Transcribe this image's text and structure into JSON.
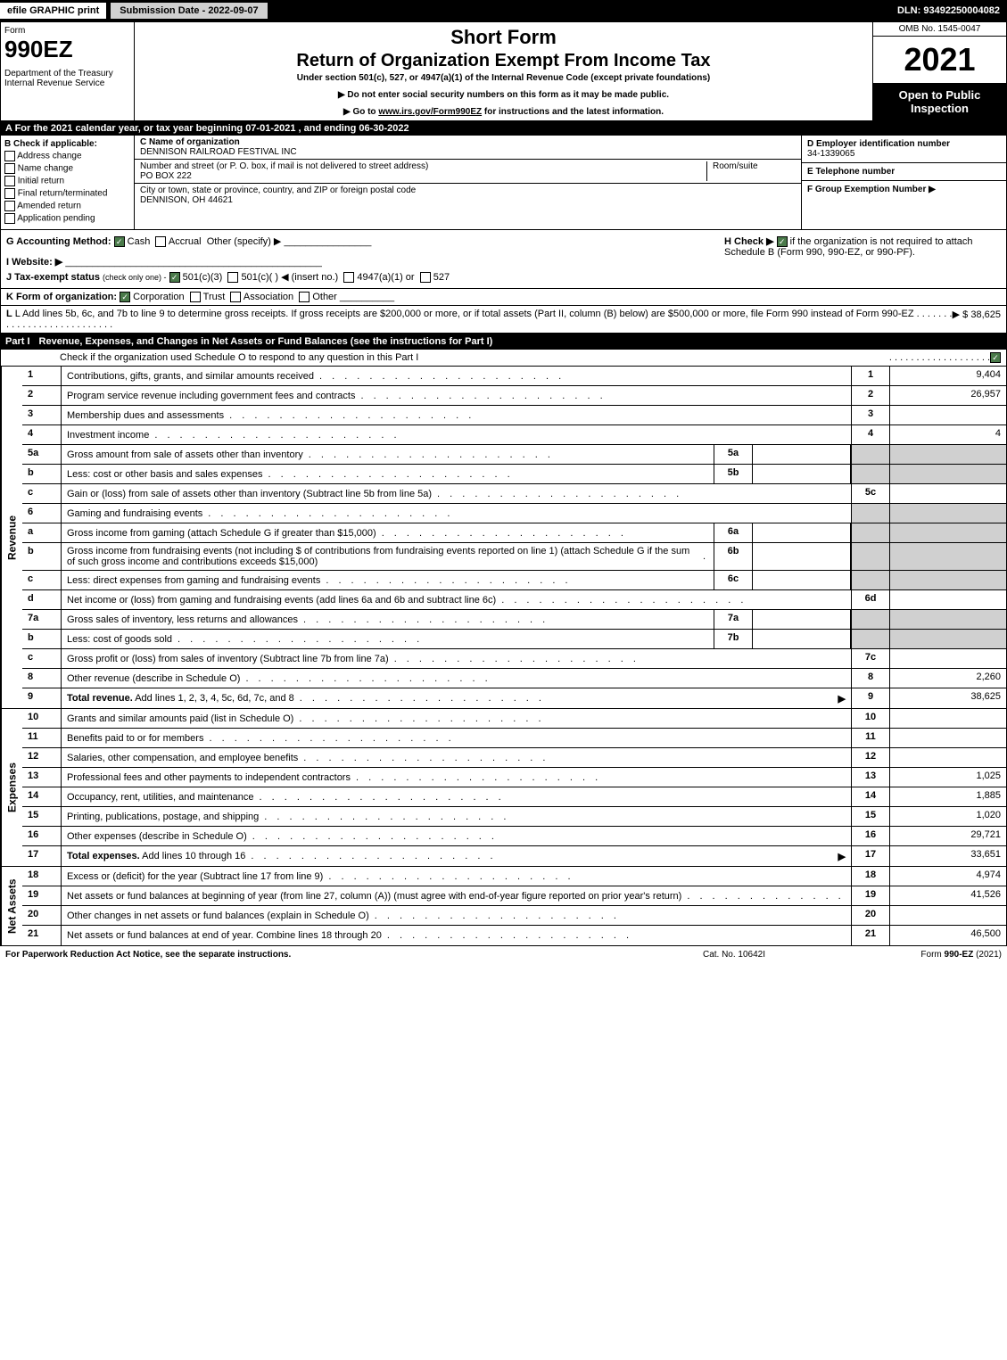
{
  "topbar": {
    "efile": "efile GRAPHIC print",
    "submission": "Submission Date - 2022-09-07",
    "dln": "DLN: 93492250004082"
  },
  "header": {
    "form_label": "Form",
    "form_number": "990EZ",
    "dept": "Department of the Treasury\nInternal Revenue Service",
    "short_form": "Short Form",
    "return_title": "Return of Organization Exempt From Income Tax",
    "under_section": "Under section 501(c), 527, or 4947(a)(1) of the Internal Revenue Code (except private foundations)",
    "instr1": "▶ Do not enter social security numbers on this form as it may be made public.",
    "instr2_prefix": "▶ Go to ",
    "instr2_link": "www.irs.gov/Form990EZ",
    "instr2_suffix": " for instructions and the latest information.",
    "omb": "OMB No. 1545-0047",
    "year": "2021",
    "inspection": "Open to Public Inspection"
  },
  "section_a": "A  For the 2021 calendar year, or tax year beginning 07-01-2021 , and ending 06-30-2022",
  "section_b": {
    "title": "B  Check if applicable:",
    "options": [
      "Address change",
      "Name change",
      "Initial return",
      "Final return/terminated",
      "Amended return",
      "Application pending"
    ]
  },
  "section_c": {
    "name_label": "C Name of organization",
    "name": "DENNISON RAILROAD FESTIVAL INC",
    "street_label": "Number and street (or P. O. box, if mail is not delivered to street address)",
    "room_label": "Room/suite",
    "street": "PO BOX 222",
    "city_label": "City or town, state or province, country, and ZIP or foreign postal code",
    "city": "DENNISON, OH  44621"
  },
  "section_d": {
    "ein_label": "D Employer identification number",
    "ein": "34-1339065",
    "phone_label": "E Telephone number",
    "group_label": "F Group Exemption Number  ▶"
  },
  "section_g": {
    "label": "G Accounting Method:",
    "cash": "Cash",
    "accrual": "Accrual",
    "other": "Other (specify) ▶"
  },
  "section_h": {
    "label": "H  Check ▶",
    "text": "if the organization is not required to attach Schedule B (Form 990, 990-EZ, or 990-PF)."
  },
  "section_i": {
    "label": "I Website: ▶"
  },
  "section_j": {
    "label": "J Tax-exempt status",
    "subtext": "(check only one) -",
    "opt1": "501(c)(3)",
    "opt2": "501(c)(  ) ◀ (insert no.)",
    "opt3": "4947(a)(1) or",
    "opt4": "527"
  },
  "section_k": {
    "label": "K Form of organization:",
    "opts": [
      "Corporation",
      "Trust",
      "Association",
      "Other"
    ]
  },
  "section_l": {
    "text": "L Add lines 5b, 6c, and 7b to line 9 to determine gross receipts. If gross receipts are $200,000 or more, or if total assets (Part II, column (B) below) are $500,000 or more, file Form 990 instead of Form 990-EZ",
    "amount": "▶ $ 38,625"
  },
  "part1": {
    "label": "Part I",
    "title": "Revenue, Expenses, and Changes in Net Assets or Fund Balances (see the instructions for Part I)",
    "check_line": "Check if the organization used Schedule O to respond to any question in this Part I"
  },
  "revenue_label": "Revenue",
  "expenses_label": "Expenses",
  "netassets_label": "Net Assets",
  "lines": {
    "1": {
      "num": "1",
      "desc": "Contributions, gifts, grants, and similar amounts received",
      "col": "1",
      "val": "9,404"
    },
    "2": {
      "num": "2",
      "desc": "Program service revenue including government fees and contracts",
      "col": "2",
      "val": "26,957"
    },
    "3": {
      "num": "3",
      "desc": "Membership dues and assessments",
      "col": "3",
      "val": ""
    },
    "4": {
      "num": "4",
      "desc": "Investment income",
      "col": "4",
      "val": "4"
    },
    "5a": {
      "num": "5a",
      "desc": "Gross amount from sale of assets other than inventory",
      "sub": "5a"
    },
    "5b": {
      "num": "b",
      "desc": "Less: cost or other basis and sales expenses",
      "sub": "5b"
    },
    "5c": {
      "num": "c",
      "desc": "Gain or (loss) from sale of assets other than inventory (Subtract line 5b from line 5a)",
      "col": "5c",
      "val": ""
    },
    "6": {
      "num": "6",
      "desc": "Gaming and fundraising events"
    },
    "6a": {
      "num": "a",
      "desc": "Gross income from gaming (attach Schedule G if greater than $15,000)",
      "sub": "6a"
    },
    "6b": {
      "num": "b",
      "desc": "Gross income from fundraising events (not including $               of contributions from fundraising events reported on line 1) (attach Schedule G if the sum of such gross income and contributions exceeds $15,000)",
      "sub": "6b"
    },
    "6c": {
      "num": "c",
      "desc": "Less: direct expenses from gaming and fundraising events",
      "sub": "6c"
    },
    "6d": {
      "num": "d",
      "desc": "Net income or (loss) from gaming and fundraising events (add lines 6a and 6b and subtract line 6c)",
      "col": "6d",
      "val": ""
    },
    "7a": {
      "num": "7a",
      "desc": "Gross sales of inventory, less returns and allowances",
      "sub": "7a"
    },
    "7b": {
      "num": "b",
      "desc": "Less: cost of goods sold",
      "sub": "7b"
    },
    "7c": {
      "num": "c",
      "desc": "Gross profit or (loss) from sales of inventory (Subtract line 7b from line 7a)",
      "col": "7c",
      "val": ""
    },
    "8": {
      "num": "8",
      "desc": "Other revenue (describe in Schedule O)",
      "col": "8",
      "val": "2,260"
    },
    "9": {
      "num": "9",
      "desc": "Total revenue. Add lines 1, 2, 3, 4, 5c, 6d, 7c, and 8",
      "col": "9",
      "val": "38,625",
      "bold": true,
      "arrow": true
    },
    "10": {
      "num": "10",
      "desc": "Grants and similar amounts paid (list in Schedule O)",
      "col": "10",
      "val": ""
    },
    "11": {
      "num": "11",
      "desc": "Benefits paid to or for members",
      "col": "11",
      "val": ""
    },
    "12": {
      "num": "12",
      "desc": "Salaries, other compensation, and employee benefits",
      "col": "12",
      "val": ""
    },
    "13": {
      "num": "13",
      "desc": "Professional fees and other payments to independent contractors",
      "col": "13",
      "val": "1,025"
    },
    "14": {
      "num": "14",
      "desc": "Occupancy, rent, utilities, and maintenance",
      "col": "14",
      "val": "1,885"
    },
    "15": {
      "num": "15",
      "desc": "Printing, publications, postage, and shipping",
      "col": "15",
      "val": "1,020"
    },
    "16": {
      "num": "16",
      "desc": "Other expenses (describe in Schedule O)",
      "col": "16",
      "val": "29,721"
    },
    "17": {
      "num": "17",
      "desc": "Total expenses. Add lines 10 through 16",
      "col": "17",
      "val": "33,651",
      "bold": true,
      "arrow": true
    },
    "18": {
      "num": "18",
      "desc": "Excess or (deficit) for the year (Subtract line 17 from line 9)",
      "col": "18",
      "val": "4,974"
    },
    "19": {
      "num": "19",
      "desc": "Net assets or fund balances at beginning of year (from line 27, column (A)) (must agree with end-of-year figure reported on prior year's return)",
      "col": "19",
      "val": "41,526"
    },
    "20": {
      "num": "20",
      "desc": "Other changes in net assets or fund balances (explain in Schedule O)",
      "col": "20",
      "val": ""
    },
    "21": {
      "num": "21",
      "desc": "Net assets or fund balances at end of year. Combine lines 18 through 20",
      "col": "21",
      "val": "46,500"
    }
  },
  "footer": {
    "left": "For Paperwork Reduction Act Notice, see the separate instructions.",
    "center": "Cat. No. 10642I",
    "right_prefix": "Form ",
    "right_form": "990-EZ",
    "right_suffix": " (2021)"
  }
}
